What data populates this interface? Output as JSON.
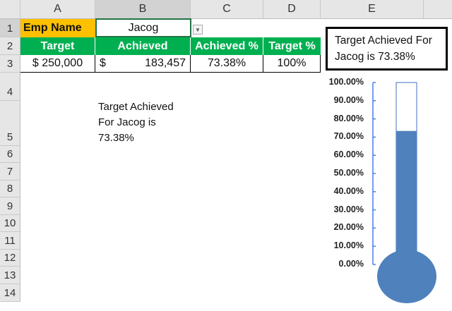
{
  "columns": [
    "A",
    "B",
    "C",
    "D",
    "E"
  ],
  "rows": [
    "1",
    "2",
    "3",
    "4",
    "5",
    "6",
    "7",
    "8",
    "9",
    "10",
    "11",
    "12",
    "13",
    "14"
  ],
  "row1": {
    "label": "Emp Name",
    "value": "Jacog"
  },
  "headers": [
    "Target",
    "Achieved",
    "Achieved %",
    "Target %"
  ],
  "row3": {
    "target": "$ 250,000",
    "achieved_symbol": "$",
    "achieved": "183,457",
    "achieved_pct": "73.38%",
    "target_pct": "100%"
  },
  "cell_text": {
    "line1": "Target Achieved",
    "line2": "For Jacog is",
    "line3": "73.38%"
  },
  "textbox": {
    "line1": "Target Achieved For",
    "line2": "Jacog is 73.38%"
  },
  "colors": {
    "header_green": "#00b050",
    "label_yellow": "#ffc000",
    "thermo_fill": "#4f81bd",
    "axis": "#4a7ef0"
  },
  "chart_data": {
    "type": "bar",
    "subtype": "thermometer",
    "values": [
      0.7338
    ],
    "ylim": [
      0,
      1
    ],
    "yticks": [
      "0.00%",
      "10.00%",
      "20.00%",
      "30.00%",
      "40.00%",
      "50.00%",
      "60.00%",
      "70.00%",
      "80.00%",
      "90.00%",
      "100.00%"
    ],
    "grid": false
  }
}
